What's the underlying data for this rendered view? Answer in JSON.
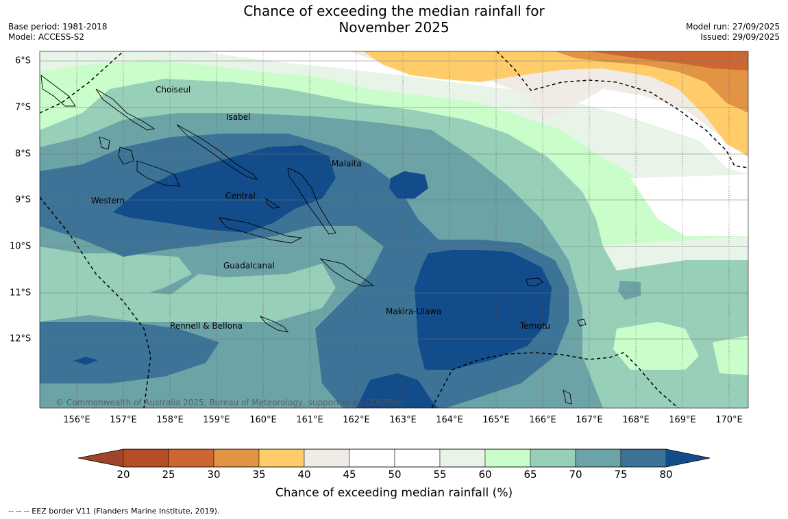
{
  "title": {
    "line1": "Chance of exceeding the median rainfall for",
    "line2": "November 2025"
  },
  "meta": {
    "base_period": "Base period: 1981-2018",
    "model": "Model: ACCESS-S2",
    "model_run": "Model run: 27/09/2025",
    "issued": "Issued: 29/09/2025"
  },
  "map": {
    "lon_labels": [
      "156°E",
      "157°E",
      "158°E",
      "159°E",
      "160°E",
      "161°E",
      "162°E",
      "163°E",
      "164°E",
      "165°E",
      "166°E",
      "167°E",
      "168°E",
      "169°E",
      "170°E"
    ],
    "lat_labels": [
      "6°S",
      "7°S",
      "8°S",
      "9°S",
      "10°S",
      "11°S",
      "12°S"
    ],
    "regions": [
      "Choiseul",
      "Isabel",
      "Malaita",
      "Central",
      "Western",
      "Guadalcanal",
      "Makira-Ulawa",
      "Rennell & Bellona",
      "Temotu"
    ],
    "copyright": "© Commonwealth of Australia 2025, Bureau of Meteorology, supported by COSPPac"
  },
  "colorbar": {
    "label": "Chance of exceeding median rainfall (%)",
    "ticks": [
      "20",
      "25",
      "30",
      "35",
      "40",
      "45",
      "50",
      "55",
      "60",
      "65",
      "70",
      "75",
      "80"
    ],
    "colors": [
      "#a0452c",
      "#b54d26",
      "#cc6632",
      "#e19444",
      "#fecd69",
      "#f1ebe5",
      "#ffffff",
      "#ffffff",
      "#e9f4e9",
      "#c9fdc9",
      "#98cfb9",
      "#6ca3a7",
      "#3d7397",
      "#134c8a"
    ]
  },
  "footnote": "--  --  -- EEZ border V11 (Flanders Marine Institute, 2019)."
}
